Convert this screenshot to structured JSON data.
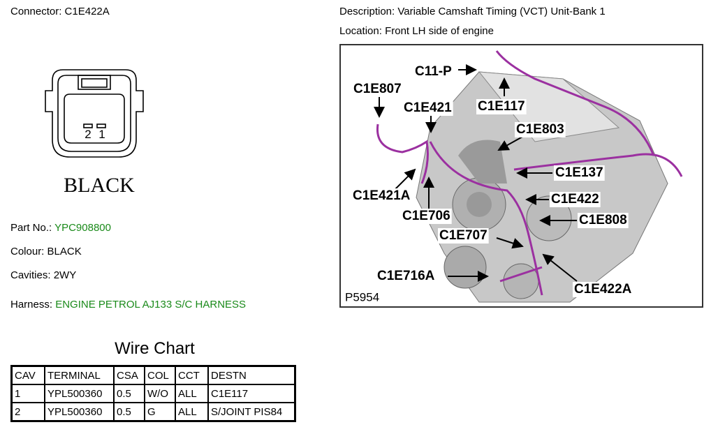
{
  "header": {
    "connector_label": "Connector:",
    "connector": "C1E422A",
    "description_label": "Description:",
    "description": "Variable Camshaft Timing (VCT) Unit-Bank 1",
    "location_label": "Location:",
    "location": "Front LH side of engine"
  },
  "connector_drawing": {
    "pins": [
      "2",
      "1"
    ],
    "color_label": "BLACK"
  },
  "details": [
    {
      "label": "Part No.:",
      "value": "YPC908800"
    },
    {
      "label": "Colour:",
      "value": "BLACK"
    },
    {
      "label": "Cavities:",
      "value": "2WY"
    },
    {
      "label": "Harness:",
      "value": "ENGINE PETROL AJ133 S/C HARNESS"
    }
  ],
  "wire_chart": {
    "title": "Wire Chart",
    "columns": [
      "CAV",
      "TERMINAL",
      "CSA",
      "COL",
      "CCT",
      "DESTN"
    ],
    "rows": [
      [
        "1",
        "YPL500360",
        "0.5",
        "W/O",
        "ALL",
        "C1E117"
      ],
      [
        "2",
        "YPL500360",
        "0.5",
        "G",
        "ALL",
        "S/JOINT PIS84"
      ]
    ]
  },
  "figure": {
    "id": "P5954",
    "labels": [
      "C11-P",
      "C1E807",
      "C1E421",
      "C1E117",
      "C1E803",
      "C1E137",
      "C1E421A",
      "C1E422",
      "C1E706",
      "C1E808",
      "C1E707",
      "C1E716A",
      "C1E422A"
    ]
  }
}
